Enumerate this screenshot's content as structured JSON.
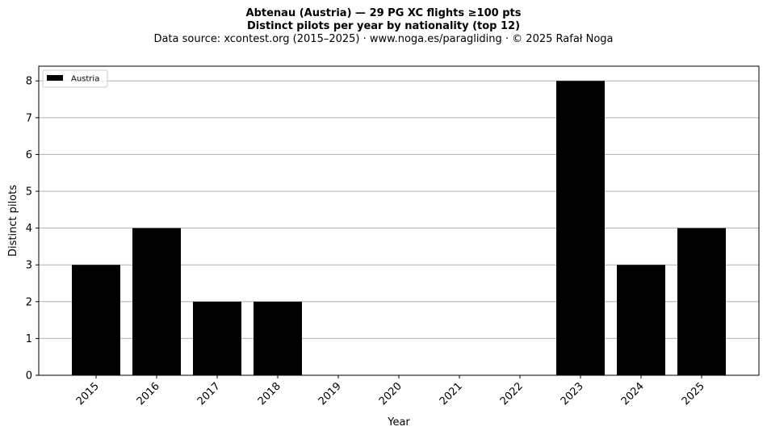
{
  "titles": {
    "line1": "Abtenau (Austria)  —  29 PG XC flights ≥100 pts",
    "line2": "Distinct pilots per year by nationality (top 12)",
    "line3": "Data source: xcontest.org (2015–2025)  ·  www.noga.es/paragliding  ·  © 2025 Rafał Noga"
  },
  "chart_data": {
    "type": "bar",
    "categories": [
      "2015",
      "2016",
      "2017",
      "2018",
      "2019",
      "2020",
      "2021",
      "2022",
      "2023",
      "2024",
      "2025"
    ],
    "series": [
      {
        "name": "Austria",
        "values": [
          3,
          4,
          2,
          2,
          0,
          0,
          0,
          0,
          8,
          3,
          4
        ],
        "color": "#000000"
      }
    ],
    "xlabel": "Year",
    "ylabel": "Distinct pilots",
    "ylim": [
      0,
      8.4
    ],
    "yticks": [
      0,
      1,
      2,
      3,
      4,
      5,
      6,
      7,
      8
    ],
    "grid": "y",
    "grid_color": "#b0b0b0",
    "legend_position": "top-left"
  }
}
